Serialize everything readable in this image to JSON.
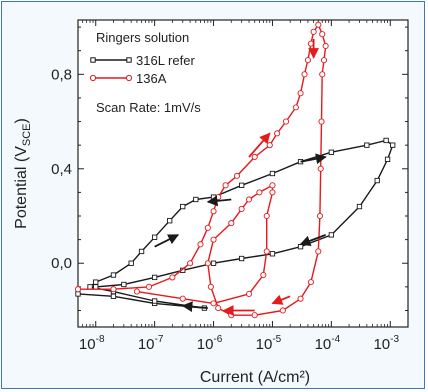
{
  "chart_data": {
    "type": "line",
    "xlabel": "Current (A/cm²)",
    "ylabel": "Potential (V",
    "ylabel_sub": "SCE",
    "ylabel_end": ")",
    "xscale": "log",
    "xlim": [
      5e-09,
      0.002
    ],
    "ylim": [
      -0.27,
      1.03
    ],
    "x_ticks": [
      {
        "value": 1e-08,
        "base": "10",
        "exp": "-8"
      },
      {
        "value": 1e-07,
        "base": "10",
        "exp": "-7"
      },
      {
        "value": 1e-06,
        "base": "10",
        "exp": "-6"
      },
      {
        "value": 1e-05,
        "base": "10",
        "exp": "-5"
      },
      {
        "value": 0.0001,
        "base": "10",
        "exp": "-4"
      },
      {
        "value": 0.001,
        "base": "10",
        "exp": "-3"
      }
    ],
    "y_ticks": [
      {
        "value": 0.0,
        "label": "0,0"
      },
      {
        "value": 0.4,
        "label": "0,4"
      },
      {
        "value": 0.8,
        "label": "0,8"
      }
    ],
    "legend_title": "Ringers solution",
    "legend_position": "top-left",
    "annotation": "Scan Rate: 1mV/s",
    "series": [
      {
        "name": "316L refer",
        "color": "#1a1a1a",
        "marker": "square",
        "points": [
          [
            5e-09,
            -0.13
          ],
          [
            2e-08,
            -0.14
          ],
          [
            1e-07,
            -0.17
          ],
          [
            7e-07,
            -0.19
          ],
          [
            1e-07,
            -0.16
          ],
          [
            2e-08,
            -0.12
          ],
          [
            8e-09,
            -0.1
          ],
          [
            1e-08,
            -0.08
          ],
          [
            2e-08,
            -0.05
          ],
          [
            4e-08,
            0.0
          ],
          [
            6e-08,
            0.05
          ],
          [
            1e-07,
            0.11
          ],
          [
            1.8e-07,
            0.18
          ],
          [
            3e-07,
            0.24
          ],
          [
            5e-07,
            0.27
          ],
          [
            1e-06,
            0.28
          ],
          [
            3e-06,
            0.33
          ],
          [
            1e-05,
            0.38
          ],
          [
            3e-05,
            0.43
          ],
          [
            0.0001,
            0.47
          ],
          [
            0.0004,
            0.5
          ],
          [
            0.00085,
            0.52
          ],
          [
            0.0011,
            0.5
          ],
          [
            0.0009,
            0.44
          ],
          [
            0.0006,
            0.35
          ],
          [
            0.0003,
            0.24
          ],
          [
            0.0001,
            0.12
          ],
          [
            3e-05,
            0.07
          ],
          [
            1e-05,
            0.04
          ],
          [
            3e-06,
            0.02
          ],
          [
            1e-06,
            0.0
          ],
          [
            3e-07,
            -0.03
          ],
          [
            1e-07,
            -0.06
          ],
          [
            3e-08,
            -0.09
          ],
          [
            1e-08,
            -0.1
          ]
        ]
      },
      {
        "name": "136A",
        "color": "#e41a1c",
        "marker": "circle",
        "points": [
          [
            5e-09,
            -0.11
          ],
          [
            2e-08,
            -0.11
          ],
          [
            8e-08,
            -0.1
          ],
          [
            2e-07,
            -0.06
          ],
          [
            4e-07,
            0.0
          ],
          [
            6e-07,
            0.08
          ],
          [
            8e-07,
            0.15
          ],
          [
            1e-06,
            0.22
          ],
          [
            1.2e-06,
            0.28
          ],
          [
            1.6e-06,
            0.33
          ],
          [
            2.5e-06,
            0.37
          ],
          [
            5e-06,
            0.45
          ],
          [
            9e-06,
            0.5
          ],
          [
            1.2e-05,
            0.55
          ],
          [
            1.7e-05,
            0.6
          ],
          [
            2.5e-05,
            0.66
          ],
          [
            3e-05,
            0.72
          ],
          [
            3.5e-05,
            0.8
          ],
          [
            4e-05,
            0.86
          ],
          [
            4.5e-05,
            0.93
          ],
          [
            5e-05,
            0.98
          ],
          [
            6e-05,
            1.01
          ],
          [
            7e-05,
            0.97
          ],
          [
            8e-05,
            0.92
          ],
          [
            7.5e-05,
            0.86
          ],
          [
            7e-05,
            0.8
          ],
          [
            6.8e-05,
            0.6
          ],
          [
            6.6e-05,
            0.4
          ],
          [
            6.4e-05,
            0.2
          ],
          [
            6e-05,
            0.05
          ],
          [
            4.5e-05,
            -0.08
          ],
          [
            3e-05,
            -0.15
          ],
          [
            1.5e-05,
            -0.2
          ],
          [
            5e-06,
            -0.22
          ],
          [
            2e-06,
            -0.22
          ],
          [
            1.2e-06,
            -0.19
          ],
          [
            9e-07,
            -0.1
          ],
          [
            8e-07,
            0.0
          ],
          [
            1e-06,
            0.1
          ],
          [
            2e-06,
            0.17
          ],
          [
            3e-06,
            0.23
          ],
          [
            4e-06,
            0.27
          ],
          [
            6e-06,
            0.3
          ],
          [
            1e-05,
            0.33
          ],
          [
            1e-05,
            0.3
          ],
          [
            8e-06,
            0.2
          ],
          [
            8e-06,
            0.05
          ],
          [
            7e-06,
            -0.05
          ],
          [
            4e-06,
            -0.13
          ],
          [
            1e-06,
            -0.17
          ],
          [
            3e-07,
            -0.15
          ],
          [
            5e-08,
            -0.12
          ]
        ]
      }
    ],
    "arrows": [
      {
        "color": "#1a1a1a",
        "from": [
          1e-07,
          0.07
        ],
        "to": [
          2.5e-07,
          0.12
        ]
      },
      {
        "color": "#1a1a1a",
        "from": [
          2e-06,
          0.27
        ],
        "to": [
          8e-07,
          0.26
        ]
      },
      {
        "color": "#1a1a1a",
        "from": [
          3e-05,
          0.43
        ],
        "to": [
          8e-05,
          0.45
        ]
      },
      {
        "color": "#1a1a1a",
        "from": [
          8e-05,
          0.12
        ],
        "to": [
          3e-05,
          0.08
        ]
      },
      {
        "color": "#1a1a1a",
        "from": [
          8e-07,
          -0.19
        ],
        "to": [
          3e-07,
          -0.18
        ]
      },
      {
        "color": "#e41a1c",
        "from": [
          4e-06,
          0.45
        ],
        "to": [
          9e-06,
          0.55
        ]
      },
      {
        "color": "#e41a1c",
        "from": [
          5e-05,
          0.95
        ],
        "to": [
          5e-05,
          0.87
        ]
      },
      {
        "color": "#e41a1c",
        "from": [
          5e-06,
          -0.2
        ],
        "to": [
          1.5e-06,
          -0.2
        ]
      },
      {
        "color": "#e41a1c",
        "from": [
          2e-05,
          -0.14
        ],
        "to": [
          1e-05,
          -0.17
        ]
      }
    ]
  }
}
